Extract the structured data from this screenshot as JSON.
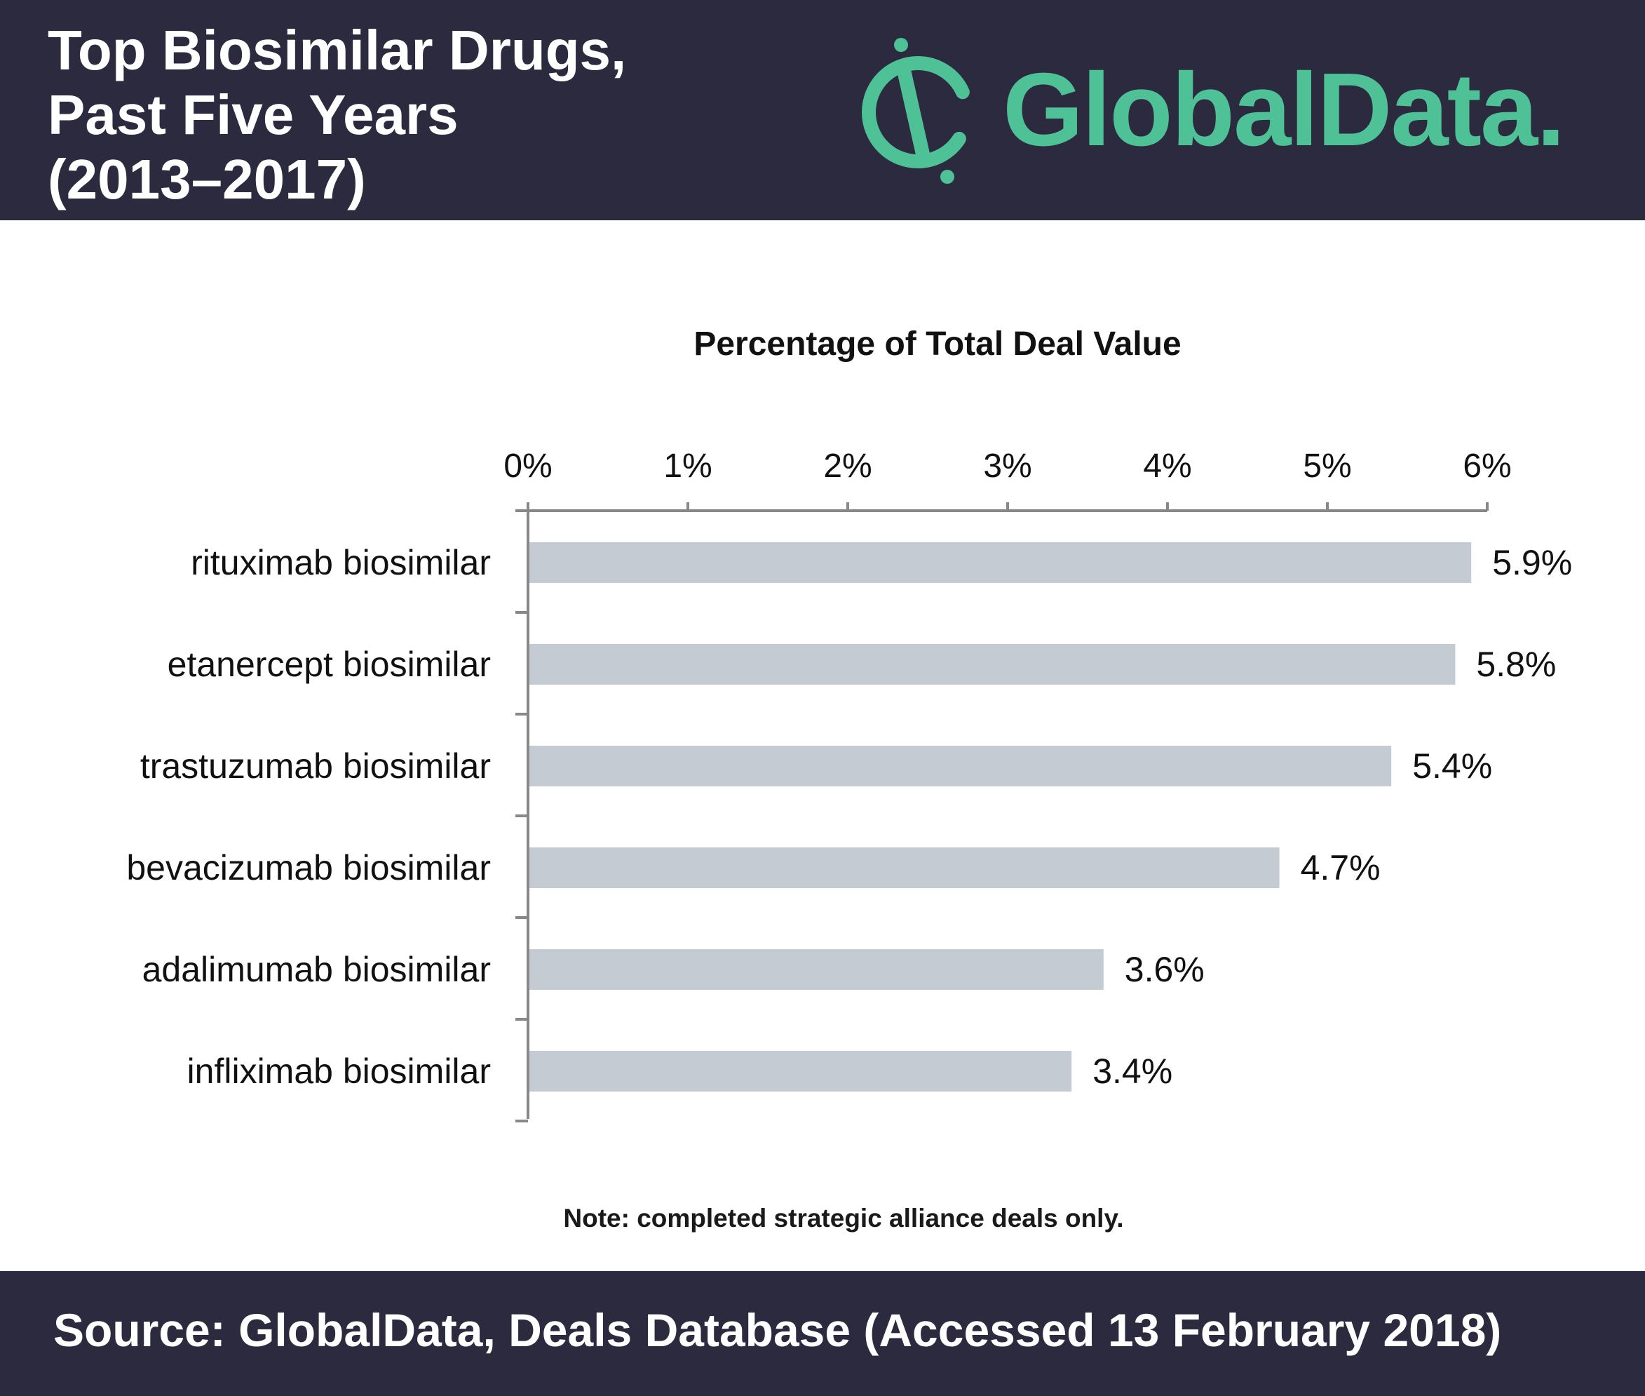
{
  "header": {
    "title_lines": [
      "Top Biosimilar Drugs,",
      "Past Five Years",
      "(2013–2017)"
    ]
  },
  "brand": {
    "name": "GlobalData.",
    "accent_color": "#4fc197",
    "logo_icon": "globaldata-logo-icon"
  },
  "colors": {
    "header_bg": "#2c2a3f",
    "bar": "#c5cbd2",
    "axis": "#888888"
  },
  "chart_data": {
    "type": "bar",
    "orientation": "horizontal",
    "title": "Percentage of Total Deal Value",
    "categories": [
      "rituximab biosimilar",
      "etanercept biosimilar",
      "trastuzumab biosimilar",
      "bevacizumab biosimilar",
      "adalimumab biosimilar",
      "infliximab biosimilar"
    ],
    "values": [
      5.9,
      5.8,
      5.4,
      4.7,
      3.6,
      3.4
    ],
    "value_labels": [
      "5.9%",
      "5.8%",
      "5.4%",
      "4.7%",
      "3.6%",
      "3.4%"
    ],
    "xlim": [
      0,
      6
    ],
    "xticks": [
      0,
      1,
      2,
      3,
      4,
      5,
      6
    ],
    "xtick_labels": [
      "0%",
      "1%",
      "2%",
      "3%",
      "4%",
      "5%",
      "6%"
    ],
    "axis_position": "top",
    "grid": false,
    "legend": "none"
  },
  "note": "Note: completed strategic alliance deals only.",
  "footer": {
    "source": "Source: GlobalData, Deals Database (Accessed 13 February 2018)"
  }
}
